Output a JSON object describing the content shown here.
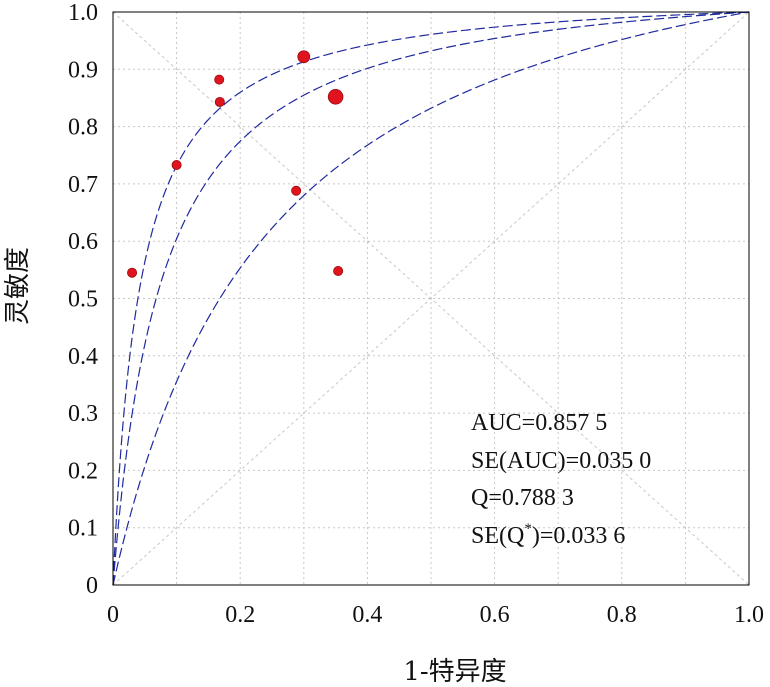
{
  "chart_data": {
    "type": "scatter",
    "xlabel": "1-特异度",
    "ylabel": "灵敏度",
    "xlim": [
      0,
      1
    ],
    "ylim": [
      0,
      1
    ],
    "grid": true,
    "x_ticks": [
      "0",
      "0.2",
      "0.4",
      "0.6",
      "0.8",
      "1.0"
    ],
    "y_ticks": [
      "0",
      "0.1",
      "0.2",
      "0.3",
      "0.4",
      "0.5",
      "0.6",
      "0.7",
      "0.8",
      "0.9",
      "1.0"
    ],
    "points": [
      {
        "x": 0.03,
        "y": 0.545,
        "weight": 1
      },
      {
        "x": 0.1,
        "y": 0.733,
        "weight": 1
      },
      {
        "x": 0.167,
        "y": 0.882,
        "weight": 1
      },
      {
        "x": 0.168,
        "y": 0.843,
        "weight": 1
      },
      {
        "x": 0.288,
        "y": 0.688,
        "weight": 1
      },
      {
        "x": 0.3,
        "y": 0.922,
        "weight": 1.3
      },
      {
        "x": 0.35,
        "y": 0.852,
        "weight": 1.6
      },
      {
        "x": 0.354,
        "y": 0.548,
        "weight": 1
      }
    ],
    "curves": [
      {
        "kind": "sroc_upper_ci",
        "style": "dashed"
      },
      {
        "kind": "sroc",
        "style": "dashed"
      },
      {
        "kind": "sroc_lower_ci",
        "style": "dashed"
      }
    ],
    "reference_lines": [
      "diagonal",
      "anti-diagonal"
    ],
    "colors": {
      "points": "#e0141e",
      "curves": "#1f2a9e",
      "grid": "#c8c8c8"
    },
    "annotations": [
      "AUC=0.857 5",
      "SE(AUC)=0.035 0",
      "Q=0.788 3",
      "SE(Q*)=0.033 6"
    ]
  }
}
